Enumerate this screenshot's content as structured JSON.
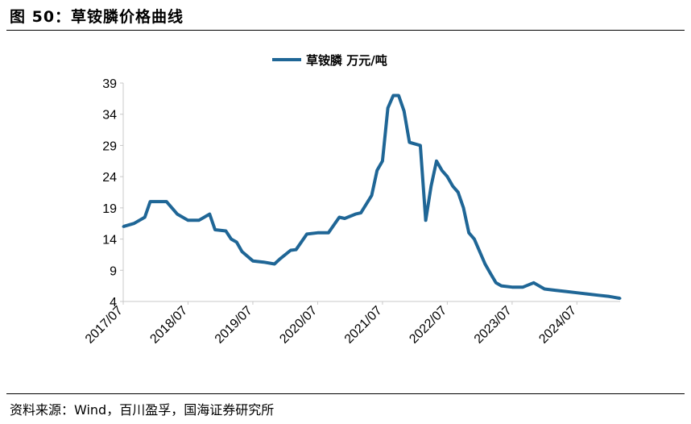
{
  "figure": {
    "title": "图 50：草铵膦价格曲线",
    "source": "资料来源：Wind，百川盈孚，国海证券研究所"
  },
  "colors": {
    "series": "#1f6696",
    "axis": "#c8c8c8",
    "text": "#000000"
  },
  "chart_data": {
    "type": "line",
    "title": "",
    "xlabel": "",
    "ylabel": "",
    "ylim": [
      4,
      39
    ],
    "yticks": [
      4,
      9,
      14,
      19,
      24,
      29,
      34,
      39
    ],
    "xlim": [
      "2017-07",
      "2025-03"
    ],
    "xticks": [
      "2017/07",
      "2018/07",
      "2019/07",
      "2020/07",
      "2021/07",
      "2022/07",
      "2023/07",
      "2024/07"
    ],
    "grid": false,
    "legend": "top-center",
    "series": [
      {
        "name": "草铵膦 万元/吨",
        "x": [
          "2017-07",
          "2017-09",
          "2017-11",
          "2017-12",
          "2018-01",
          "2018-03",
          "2018-05",
          "2018-07",
          "2018-09",
          "2018-11",
          "2018-12",
          "2019-02",
          "2019-03",
          "2019-04",
          "2019-05",
          "2019-07",
          "2019-09",
          "2019-11",
          "2019-12",
          "2020-02",
          "2020-03",
          "2020-05",
          "2020-07",
          "2020-09",
          "2020-11",
          "2020-12",
          "2021-02",
          "2021-03",
          "2021-05",
          "2021-06",
          "2021-07",
          "2021-08",
          "2021-09",
          "2021-10",
          "2021-11",
          "2021-12",
          "2022-02",
          "2022-03",
          "2022-04",
          "2022-05",
          "2022-06",
          "2022-07",
          "2022-08",
          "2022-09",
          "2022-10",
          "2022-11",
          "2022-12",
          "2023-02",
          "2023-03",
          "2023-04",
          "2023-05",
          "2023-07",
          "2023-09",
          "2023-11",
          "2024-01",
          "2024-03",
          "2024-05",
          "2024-07",
          "2024-09",
          "2024-11",
          "2025-01",
          "2025-03"
        ],
        "values": [
          16,
          16.5,
          17.5,
          20,
          20,
          20,
          18,
          17,
          17,
          18,
          15.5,
          15.3,
          14,
          13.5,
          12,
          10.5,
          10.3,
          10,
          10.8,
          12.2,
          12.3,
          14.8,
          15,
          15,
          17.5,
          17.3,
          18,
          18.2,
          21,
          25,
          26.5,
          35,
          37,
          37,
          34.5,
          29.5,
          29,
          17,
          22.5,
          26.5,
          25,
          24,
          22.5,
          21.5,
          19,
          15,
          14,
          10,
          8.5,
          7,
          6.5,
          6.3,
          6.3,
          7,
          6,
          5.8,
          5.6,
          5.4,
          5.2,
          5,
          4.8,
          4.5
        ]
      }
    ]
  }
}
